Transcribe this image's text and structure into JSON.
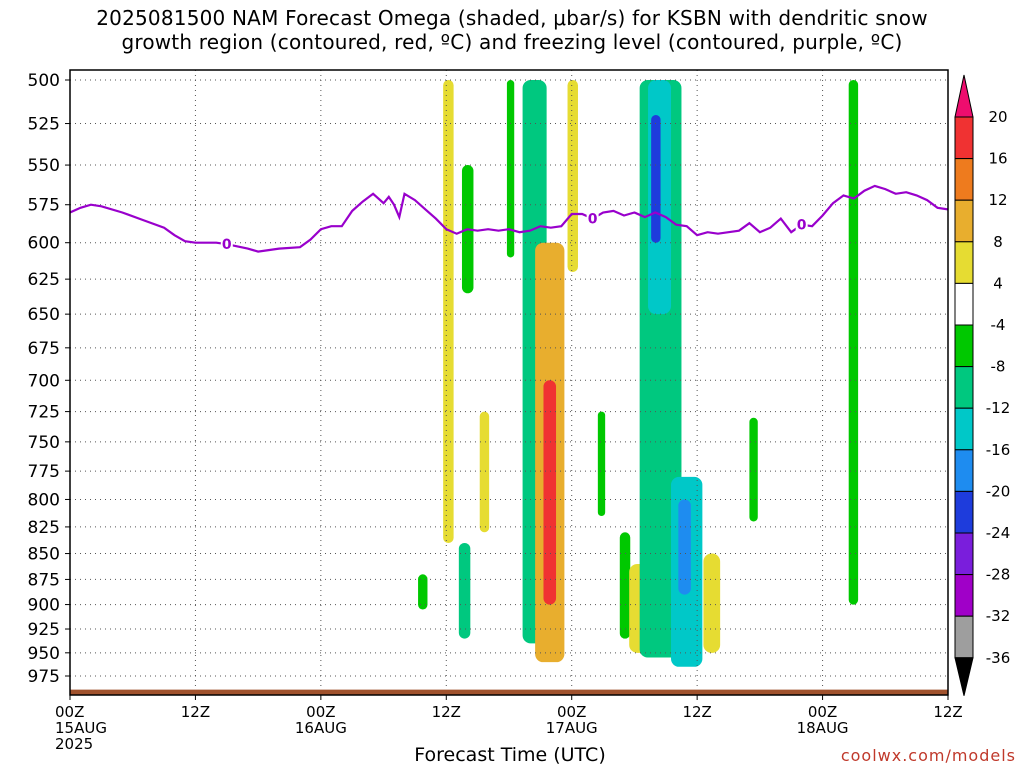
{
  "title": {
    "line1": "2025081500 NAM Forecast Omega (shaded, μbar/s) for KSBN with dendritic snow",
    "line2": "growth region (contoured, red, ºC) and freezing level (contoured, purple, ºC)"
  },
  "credit": "coolwx.com/models",
  "chart_data": {
    "type": "heatmap",
    "title": "2025081500 NAM Forecast Omega (shaded, μbar/s) for KSBN with dendritic snow growth region (contoured, red, ºC) and freezing level (contoured, purple, ºC)",
    "xlabel": "Forecast Time (UTC)",
    "ylabel": "",
    "x_range_hours": [
      0,
      84
    ],
    "x_ticks": [
      {
        "hour": 0,
        "lines": [
          "00Z",
          "15AUG",
          "2025"
        ]
      },
      {
        "hour": 12,
        "lines": [
          "12Z"
        ]
      },
      {
        "hour": 24,
        "lines": [
          "00Z",
          "16AUG"
        ]
      },
      {
        "hour": 36,
        "lines": [
          "12Z"
        ]
      },
      {
        "hour": 48,
        "lines": [
          "00Z",
          "17AUG"
        ]
      },
      {
        "hour": 60,
        "lines": [
          "12Z"
        ]
      },
      {
        "hour": 72,
        "lines": [
          "00Z",
          "18AUG"
        ]
      },
      {
        "hour": 84,
        "lines": [
          "12Z"
        ]
      }
    ],
    "y_scale": "log",
    "y_range_hpa": [
      500,
      1000
    ],
    "y_ticks": [
      500,
      525,
      550,
      575,
      600,
      625,
      650,
      675,
      700,
      725,
      750,
      775,
      800,
      825,
      850,
      875,
      900,
      925,
      950,
      975
    ],
    "grid": true,
    "colorbar": {
      "labels": [
        "20",
        "16",
        "12",
        "8",
        "4",
        "-4",
        "-8",
        "-12",
        "-16",
        "-20",
        "-24",
        "-28",
        "-32",
        "-36"
      ],
      "colors": [
        "#ee0d6e",
        "#f03232",
        "#ee7b1e",
        "#e8ae2e",
        "#e6dc32",
        "#ffffff",
        "#00c800",
        "#00c87f",
        "#00c8c8",
        "#1e8cf0",
        "#1e3cdc",
        "#7a1edc",
        "#a000c8",
        "#9e9e9e",
        "#000000"
      ]
    },
    "freezing_level": {
      "color": "#9900cc",
      "label": "0",
      "points": [
        [
          0,
          580
        ],
        [
          1,
          577
        ],
        [
          2,
          575
        ],
        [
          3,
          576
        ],
        [
          5,
          580
        ],
        [
          7,
          585
        ],
        [
          9,
          590
        ],
        [
          10,
          595
        ],
        [
          11,
          599
        ],
        [
          12,
          600
        ],
        [
          14,
          600
        ],
        [
          15,
          601
        ],
        [
          17,
          604
        ],
        [
          18,
          606
        ],
        [
          19,
          605
        ],
        [
          20,
          604
        ],
        [
          22,
          603
        ],
        [
          23,
          598
        ],
        [
          24,
          591
        ],
        [
          25,
          589
        ],
        [
          26,
          589
        ],
        [
          27,
          579
        ],
        [
          28,
          573
        ],
        [
          29,
          568
        ],
        [
          30,
          574
        ],
        [
          30.5,
          570
        ],
        [
          31,
          575
        ],
        [
          31.5,
          583
        ],
        [
          32,
          568
        ],
        [
          33,
          572
        ],
        [
          34,
          578
        ],
        [
          35,
          584
        ],
        [
          36,
          591
        ],
        [
          37,
          594
        ],
        [
          38,
          591
        ],
        [
          39,
          592
        ],
        [
          40,
          591
        ],
        [
          41,
          592
        ],
        [
          42,
          591
        ],
        [
          43,
          593
        ],
        [
          44,
          592
        ],
        [
          45,
          589
        ],
        [
          46,
          590
        ],
        [
          47,
          589
        ],
        [
          48,
          581
        ],
        [
          49,
          581
        ],
        [
          50,
          584
        ],
        [
          51,
          580
        ],
        [
          52,
          579
        ],
        [
          53,
          582
        ],
        [
          54,
          580
        ],
        [
          55,
          583
        ],
        [
          56,
          580
        ],
        [
          57,
          583
        ],
        [
          58,
          588
        ],
        [
          59,
          589
        ],
        [
          60,
          595
        ],
        [
          61,
          593
        ],
        [
          62,
          594
        ],
        [
          63,
          593
        ],
        [
          64,
          592
        ],
        [
          65,
          587
        ],
        [
          66,
          593
        ],
        [
          67,
          590
        ],
        [
          68,
          584
        ],
        [
          69,
          593
        ],
        [
          70,
          588
        ],
        [
          71,
          589
        ],
        [
          72,
          582
        ],
        [
          73,
          574
        ],
        [
          74,
          569
        ],
        [
          75,
          571
        ],
        [
          76,
          566
        ],
        [
          77,
          563
        ],
        [
          78,
          565
        ],
        [
          79,
          568
        ],
        [
          80,
          567
        ],
        [
          81,
          569
        ],
        [
          82,
          572
        ],
        [
          83,
          577
        ],
        [
          84,
          578
        ]
      ],
      "annotation_hours": [
        15,
        50,
        70
      ]
    },
    "omega_features": [
      {
        "hour_range": [
          35.7,
          36.7
        ],
        "p_range": [
          500,
          840
        ],
        "value": 6
      },
      {
        "hour_range": [
          37.5,
          38.6
        ],
        "p_range": [
          550,
          635
        ],
        "value": -6
      },
      {
        "hour_range": [
          37.2,
          38.3
        ],
        "p_range": [
          840,
          935
        ],
        "value": -8
      },
      {
        "hour_range": [
          39.2,
          40.1
        ],
        "p_range": [
          725,
          830
        ],
        "value": 5
      },
      {
        "hour_range": [
          41.8,
          42.5
        ],
        "p_range": [
          500,
          610
        ],
        "value": -6
      },
      {
        "hour_range": [
          43.3,
          45.6
        ],
        "p_range": [
          500,
          940
        ],
        "value": -10
      },
      {
        "hour_range": [
          44.5,
          47.3
        ],
        "p_range": [
          600,
          960
        ],
        "value": 10
      },
      {
        "hour_range": [
          45.3,
          46.5
        ],
        "p_range": [
          700,
          900
        ],
        "value": 16
      },
      {
        "hour_range": [
          47.6,
          48.6
        ],
        "p_range": [
          500,
          620
        ],
        "value": 5
      },
      {
        "hour_range": [
          50.5,
          51.2
        ],
        "p_range": [
          725,
          815
        ],
        "value": -6
      },
      {
        "hour_range": [
          52.6,
          53.6
        ],
        "p_range": [
          830,
          935
        ],
        "value": -6
      },
      {
        "hour_range": [
          53.5,
          55.2
        ],
        "p_range": [
          860,
          950
        ],
        "value": 5
      },
      {
        "hour_range": [
          54.5,
          58.5
        ],
        "p_range": [
          500,
          955
        ],
        "value": -10
      },
      {
        "hour_range": [
          55.3,
          57.5
        ],
        "p_range": [
          500,
          650
        ],
        "value": -14
      },
      {
        "hour_range": [
          55.6,
          56.5
        ],
        "p_range": [
          520,
          600
        ],
        "value": -22
      },
      {
        "hour_range": [
          57.5,
          60.5
        ],
        "p_range": [
          780,
          965
        ],
        "value": -12
      },
      {
        "hour_range": [
          58.2,
          59.4
        ],
        "p_range": [
          800,
          890
        ],
        "value": -16
      },
      {
        "hour_range": [
          60.6,
          62.2
        ],
        "p_range": [
          850,
          950
        ],
        "value": 6
      },
      {
        "hour_range": [
          65.0,
          65.8
        ],
        "p_range": [
          730,
          820
        ],
        "value": -6
      },
      {
        "hour_range": [
          74.5,
          75.4
        ],
        "p_range": [
          500,
          900
        ],
        "value": -7
      },
      {
        "hour_range": [
          33.3,
          34.2
        ],
        "p_range": [
          870,
          905
        ],
        "value": -6
      }
    ],
    "terrain_p_hpa": 990
  }
}
